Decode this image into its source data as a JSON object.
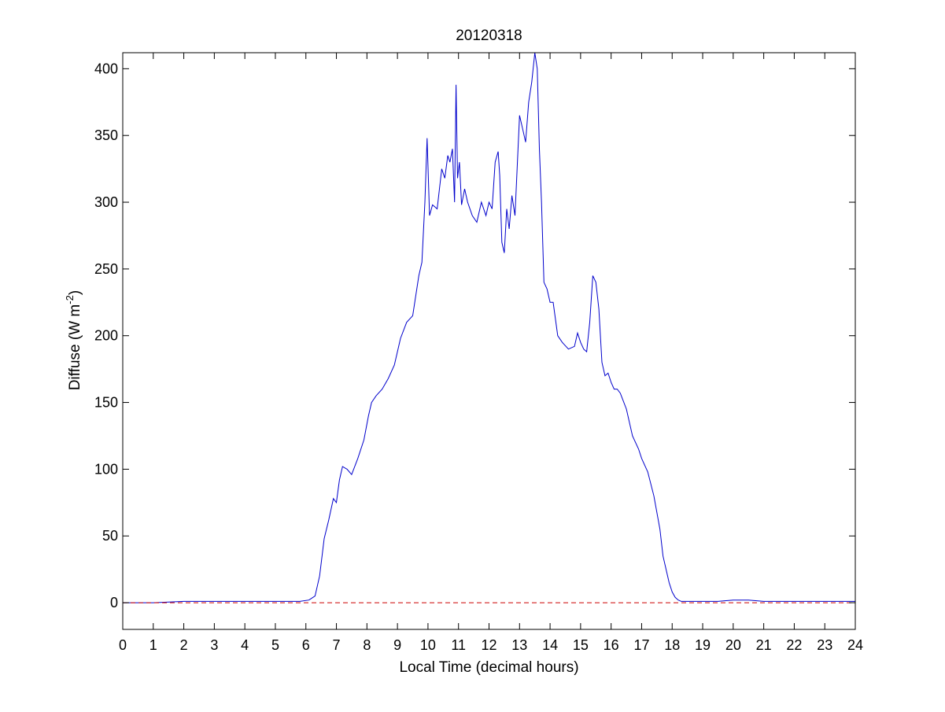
{
  "chart_data": {
    "type": "line",
    "title": "20120318",
    "xlabel": "Local Time (decimal hours)",
    "ylabel": "Diffuse (W m",
    "ylabel_superscript": "-2",
    "ylabel_suffix": ")",
    "xlim": [
      0,
      24
    ],
    "ylim": [
      -20,
      412
    ],
    "xticks": [
      0,
      1,
      2,
      3,
      4,
      5,
      6,
      7,
      8,
      9,
      10,
      11,
      12,
      13,
      14,
      15,
      16,
      17,
      18,
      19,
      20,
      21,
      22,
      23,
      24
    ],
    "yticks": [
      0,
      50,
      100,
      150,
      200,
      250,
      300,
      350,
      400
    ],
    "grid": false,
    "series": [
      {
        "color": "#0000cc",
        "style": "solid",
        "x": [
          0,
          1,
          1.5,
          2,
          3,
          4,
          5,
          5.8,
          6.1,
          6.3,
          6.45,
          6.6,
          6.75,
          6.9,
          7.0,
          7.1,
          7.2,
          7.35,
          7.5,
          7.7,
          7.9,
          8.05,
          8.15,
          8.3,
          8.5,
          8.7,
          8.9,
          9.1,
          9.3,
          9.5,
          9.7,
          9.8,
          9.9,
          9.97,
          10.05,
          10.15,
          10.3,
          10.45,
          10.55,
          10.65,
          10.72,
          10.8,
          10.87,
          10.92,
          10.97,
          11.03,
          11.1,
          11.2,
          11.3,
          11.45,
          11.6,
          11.75,
          11.9,
          12.0,
          12.1,
          12.2,
          12.3,
          12.35,
          12.42,
          12.5,
          12.58,
          12.66,
          12.75,
          12.85,
          12.93,
          13.0,
          13.1,
          13.2,
          13.3,
          13.4,
          13.5,
          13.58,
          13.65,
          13.72,
          13.8,
          13.9,
          14.0,
          14.1,
          14.25,
          14.4,
          14.6,
          14.8,
          14.9,
          15.0,
          15.1,
          15.2,
          15.3,
          15.4,
          15.5,
          15.6,
          15.7,
          15.8,
          15.9,
          16.0,
          16.1,
          16.2,
          16.3,
          16.5,
          16.7,
          16.9,
          17.0,
          17.2,
          17.4,
          17.6,
          17.7,
          17.8,
          17.9,
          18.0,
          18.1,
          18.2,
          18.3,
          18.5,
          19.0,
          19.5,
          20.0,
          20.5,
          21.0,
          22.0,
          23.0,
          24.0
        ],
        "y": [
          0,
          0,
          0.5,
          1,
          1,
          1,
          1,
          1,
          2,
          5,
          20,
          48,
          62,
          78,
          75,
          92,
          102,
          100,
          96,
          108,
          122,
          140,
          150,
          155,
          160,
          168,
          178,
          198,
          210,
          215,
          245,
          255,
          300,
          348,
          290,
          298,
          295,
          325,
          318,
          335,
          330,
          340,
          300,
          388,
          318,
          330,
          298,
          310,
          300,
          290,
          285,
          300,
          290,
          300,
          295,
          330,
          338,
          320,
          270,
          262,
          295,
          280,
          305,
          290,
          330,
          365,
          355,
          345,
          375,
          390,
          412,
          400,
          340,
          300,
          240,
          235,
          225,
          225,
          200,
          195,
          190,
          192,
          202,
          195,
          190,
          188,
          210,
          245,
          240,
          220,
          180,
          170,
          172,
          165,
          160,
          160,
          157,
          145,
          125,
          115,
          108,
          98,
          80,
          55,
          35,
          25,
          15,
          8,
          4,
          2,
          1,
          1,
          1,
          1,
          2,
          2,
          1,
          1,
          1,
          1
        ]
      },
      {
        "color": "#cc0000",
        "style": "dashed",
        "x": [
          0,
          24
        ],
        "y": [
          0,
          0
        ]
      }
    ]
  }
}
